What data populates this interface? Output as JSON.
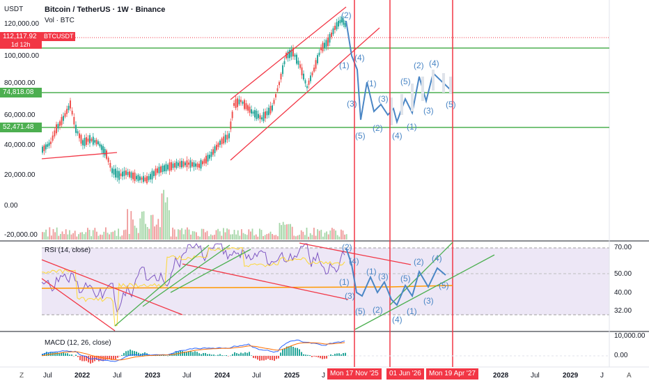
{
  "header": {
    "title": "Bitcoin / TetherUS · 1W · Binance",
    "volume": "Vol · BTC",
    "currency": "USDT"
  },
  "price_tags": {
    "current_price": "112,117.92",
    "current_countdown": "1d 12h",
    "symbol": "BTCUSDT",
    "level_1": "74,818.08",
    "level_2": "52,471.48"
  },
  "price_axis": [
    "120,000.00",
    "100,000.00",
    "80,000.00",
    "60,000.00",
    "40,000.00",
    "20,000.00",
    "0.00",
    "-20,000.00"
  ],
  "rsi": {
    "label": "RSI (14, close)",
    "axis": [
      "70.00",
      "50.00",
      "40.00",
      "32.00"
    ]
  },
  "macd": {
    "label": "MACD (12, 26, close)",
    "axis": [
      "10,000.00",
      "0.00"
    ]
  },
  "time_axis": {
    "labels": [
      "Jul",
      "2022",
      "Jul",
      "2023",
      "Jul",
      "2024",
      "Jul",
      "2025",
      "J",
      "2028",
      "Jul",
      "2029",
      "J"
    ],
    "markers": [
      "Mon 17 Nov '25",
      "01 Jun '26",
      "Mon 19 Apr '27"
    ]
  },
  "wave_labels": [
    "(2)",
    "(4)",
    "(1)",
    "(3)",
    "(5)",
    "(1)",
    "(2)",
    "(3)",
    "(4)",
    "(5)",
    "(1)",
    "(2)",
    "(3)",
    "(4)",
    "(5)"
  ],
  "rsi_wave_labels": [
    "(2)",
    "(4)",
    "(1)",
    "(3)",
    "(5)",
    "(1)",
    "(2)",
    "(3)",
    "(4)",
    "(5)",
    "(1)",
    "(2)",
    "(3)",
    "(4)",
    "(5)"
  ],
  "icons": {
    "left": "Z",
    "right": "A"
  },
  "colors": {
    "red": "#f23645",
    "green": "#4caf50",
    "blue": "#4a86c5",
    "orange": "#ff9800",
    "rsi_fill": "#ede7f6"
  }
}
